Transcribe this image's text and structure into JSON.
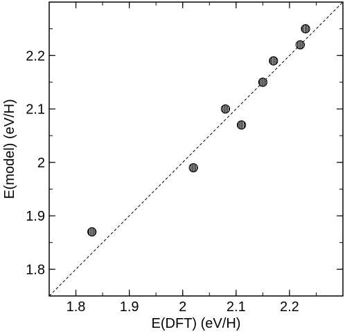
{
  "chart_data": {
    "type": "scatter",
    "title": "",
    "xlabel": "E(DFT)  (eV/H)",
    "ylabel": "E(model)  (eV/H)",
    "xlim": [
      1.75,
      2.3
    ],
    "ylim": [
      1.75,
      2.3
    ],
    "xticks": [
      1.8,
      1.9,
      2.0,
      2.1,
      2.2
    ],
    "yticks": [
      1.8,
      1.9,
      2.0,
      2.1,
      2.2
    ],
    "xtick_labels": [
      "1.8",
      "1.9",
      "2",
      "2.1",
      "2.2"
    ],
    "ytick_labels": [
      "1.8",
      "1.9",
      "2",
      "2.1",
      "2.2"
    ],
    "grid": false,
    "reference_line": {
      "style": "dashed",
      "from": [
        1.75,
        1.75
      ],
      "to": [
        2.3,
        2.3
      ]
    },
    "points": [
      {
        "x": 1.83,
        "y": 1.87
      },
      {
        "x": 2.02,
        "y": 1.99
      },
      {
        "x": 2.08,
        "y": 2.1
      },
      {
        "x": 2.11,
        "y": 2.07
      },
      {
        "x": 2.15,
        "y": 2.15
      },
      {
        "x": 2.17,
        "y": 2.19
      },
      {
        "x": 2.22,
        "y": 2.22
      },
      {
        "x": 2.23,
        "y": 2.25
      }
    ],
    "marker_color": "#000000"
  }
}
